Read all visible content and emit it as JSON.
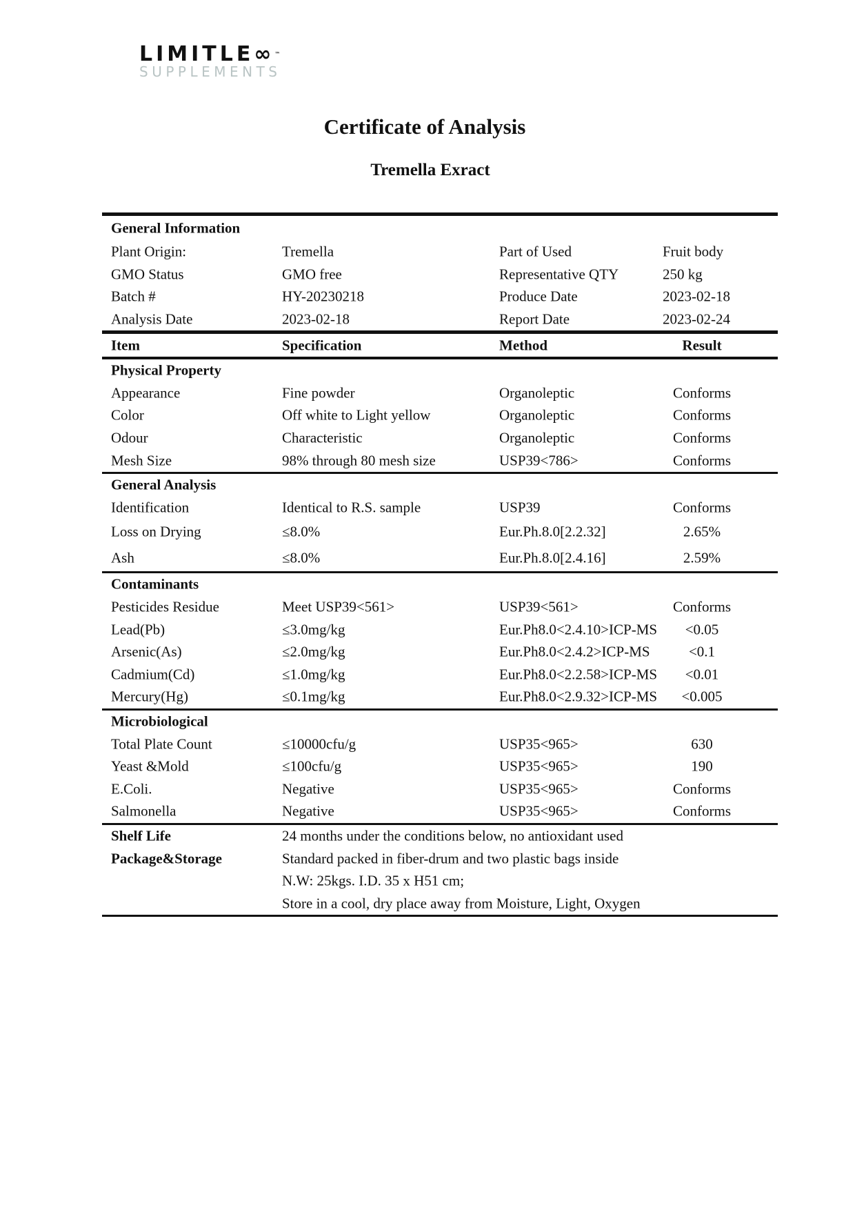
{
  "logo": {
    "brand": "LIMITLESS",
    "main_text": "LIMITLE",
    "infinity": "∞",
    "tm": "™",
    "sub_text": "SUPPLEMENTS"
  },
  "title": "Certificate of Analysis",
  "subtitle": "Tremella Exract",
  "general_information": {
    "heading": "General Information",
    "rows": [
      [
        "Plant Origin:",
        "Tremella",
        "Part of Used",
        "Fruit body"
      ],
      [
        "GMO Status",
        "GMO free",
        "Representative QTY",
        "250 kg"
      ],
      [
        "Batch #",
        "HY-20230218",
        "Produce Date",
        "2023-02-18"
      ],
      [
        "Analysis Date",
        "2023-02-18",
        "Report Date",
        "2023-02-24"
      ]
    ]
  },
  "columns": [
    "Item",
    "Specification",
    "Method",
    "Result"
  ],
  "sections": [
    {
      "heading": "Physical Property",
      "rows": [
        [
          "Appearance",
          "Fine powder",
          "Organoleptic",
          "Conforms"
        ],
        [
          "Color",
          "Off white to Light yellow",
          "Organoleptic",
          "Conforms"
        ],
        [
          "Odour",
          "Characteristic",
          "Organoleptic",
          "Conforms"
        ],
        [
          "Mesh Size",
          "98% through 80 mesh size",
          "USP39<786>",
          "Conforms"
        ]
      ]
    },
    {
      "heading": "General Analysis",
      "rows": [
        [
          "Identification",
          "Identical to R.S. sample",
          "USP39",
          "Conforms"
        ],
        [
          "Loss on Drying",
          "≤8.0%",
          "Eur.Ph.8.0[2.2.32]",
          "2.65%"
        ],
        [
          "Ash",
          "≤8.0%",
          "Eur.Ph.8.0[2.4.16]",
          "2.59%"
        ]
      ]
    },
    {
      "heading": "Contaminants",
      "rows": [
        [
          "Pesticides Residue",
          "Meet USP39<561>",
          "USP39<561>",
          "Conforms"
        ],
        [
          "Lead(Pb)",
          "≤3.0mg/kg",
          "Eur.Ph8.0<2.4.10>ICP-MS",
          "<0.05"
        ],
        [
          "Arsenic(As)",
          "≤2.0mg/kg",
          "Eur.Ph8.0<2.4.2>ICP-MS",
          "<0.1"
        ],
        [
          "Cadmium(Cd)",
          "≤1.0mg/kg",
          "Eur.Ph8.0<2.2.58>ICP-MS",
          "<0.01"
        ],
        [
          "Mercury(Hg)",
          "≤0.1mg/kg",
          "Eur.Ph8.0<2.9.32>ICP-MS",
          "<0.005"
        ]
      ]
    },
    {
      "heading": "Microbiological",
      "rows": [
        [
          "Total Plate Count",
          "≤10000cfu/g",
          "USP35<965>",
          "630"
        ],
        [
          "Yeast &Mold",
          "≤100cfu/g",
          "USP35<965>",
          "190"
        ],
        [
          "E.Coli.",
          "Negative",
          "USP35<965>",
          "Conforms"
        ],
        [
          "Salmonella",
          "Negative",
          "USP35<965>",
          "Conforms"
        ]
      ]
    }
  ],
  "storage": {
    "shelf_life_label": "Shelf Life",
    "shelf_life": "24 months under the conditions below, no antioxidant used",
    "package_label": "Package&Storage",
    "package_lines": [
      "Standard packed in fiber-drum and two plastic bags inside",
      "N.W: 25kgs. I.D. 35 x H51 cm;",
      "Store in a cool, dry place away from Moisture, Light, Oxygen"
    ]
  }
}
